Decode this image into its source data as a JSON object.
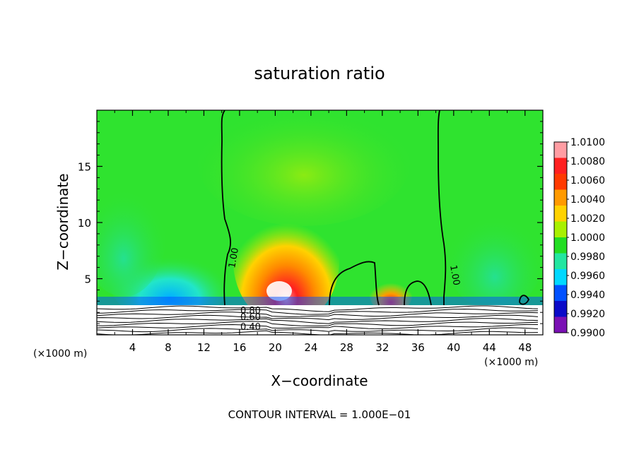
{
  "chart_data": {
    "type": "heatmap",
    "title": "saturation ratio",
    "xlabel": "X−coordinate",
    "ylabel": "Z−coordinate",
    "x_unit_left": "(×1000 m)",
    "x_unit_right": "(×1000 m)",
    "xlim": [
      0,
      50
    ],
    "ylim": [
      0,
      20
    ],
    "x_ticks": [
      4,
      8,
      12,
      16,
      20,
      24,
      28,
      32,
      36,
      40,
      44,
      48
    ],
    "y_ticks": [
      5,
      10,
      15
    ],
    "colorbar": {
      "levels": [
        "1.0100",
        "1.0080",
        "1.0060",
        "1.0040",
        "1.0020",
        "1.0000",
        "0.9980",
        "0.9960",
        "0.9940",
        "0.9920",
        "0.9900"
      ],
      "colors": [
        "#ff9da3",
        "#ff2020",
        "#ff3a00",
        "#ff9a00",
        "#ffd200",
        "#a8f000",
        "#22dd22",
        "#22e6a0",
        "#00d8ff",
        "#0050ff",
        "#0a0ac8",
        "#7a10b4"
      ]
    },
    "contour_labels": [
      "1.00",
      "1.00",
      "0.80",
      "0.60",
      "0.40"
    ],
    "footer": "CONTOUR INTERVAL = 1.000E−01",
    "colors": {
      "background_green": "#2fe32f",
      "lower_layer": "#ffffff",
      "contour_line": "#000000"
    }
  }
}
